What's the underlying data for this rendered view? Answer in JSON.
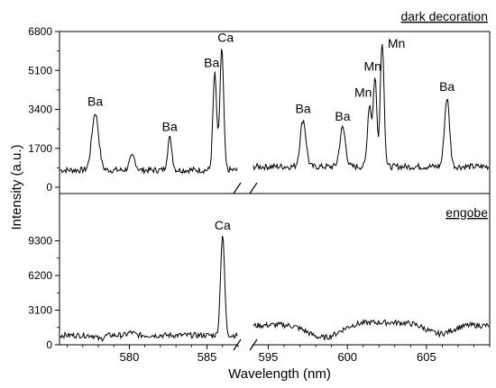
{
  "chart_data": {
    "type": "line",
    "xlabel": "Wavelength (nm)",
    "ylabel": "Intensity (a.u.)",
    "x_break": [
      587,
      594
    ],
    "x_segments": [
      [
        575.5,
        587
      ],
      [
        594,
        609
      ]
    ],
    "x_ticks": [
      {
        "value": 580,
        "label": "580"
      },
      {
        "value": 585,
        "label": "585"
      },
      {
        "value": 595,
        "label": "595"
      },
      {
        "value": 600,
        "label": "600"
      },
      {
        "value": 605,
        "label": "605"
      }
    ],
    "panels": [
      {
        "label": "dark decoration",
        "ylim": [
          0,
          6800
        ],
        "y_ticks": [
          {
            "value": 0,
            "label": "0"
          },
          {
            "value": 1700,
            "label": "1700"
          },
          {
            "value": 3400,
            "label": "3400"
          },
          {
            "value": 5100,
            "label": "5100"
          },
          {
            "value": 6800,
            "label": "6800"
          }
        ],
        "baseline_left": 750,
        "baseline_right": 900,
        "peaks": [
          {
            "x": 577.8,
            "y": 3250,
            "w": 0.22
          },
          {
            "x": 580.2,
            "y": 1350,
            "w": 0.18
          },
          {
            "x": 582.6,
            "y": 2150,
            "w": 0.14
          },
          {
            "x": 585.5,
            "y": 4950,
            "w": 0.12
          },
          {
            "x": 585.95,
            "y": 6050,
            "w": 0.12
          },
          {
            "x": 597.2,
            "y": 2950,
            "w": 0.18
          },
          {
            "x": 599.7,
            "y": 2600,
            "w": 0.18
          },
          {
            "x": 601.4,
            "y": 3600,
            "w": 0.13
          },
          {
            "x": 601.75,
            "y": 4800,
            "w": 0.11
          },
          {
            "x": 602.2,
            "y": 6400,
            "w": 0.12
          },
          {
            "x": 606.3,
            "y": 3900,
            "w": 0.16
          }
        ],
        "annotations": [
          {
            "text": "Ba",
            "x": 577.8,
            "y": 3550
          },
          {
            "text": "Ba",
            "x": 582.6,
            "y": 2450
          },
          {
            "text": "Ba",
            "x": 585.3,
            "y": 5250
          },
          {
            "text": "Ca",
            "x": 586.2,
            "y": 6350
          },
          {
            "text": "Ba",
            "x": 597.2,
            "y": 3250
          },
          {
            "text": "Ba",
            "x": 599.7,
            "y": 2900
          },
          {
            "text": "Mn",
            "x": 601.0,
            "y": 3950
          },
          {
            "text": "Mn",
            "x": 601.6,
            "y": 5100
          },
          {
            "text": "Mn",
            "x": 603.1,
            "y": 6100
          },
          {
            "text": "Ba",
            "x": 606.3,
            "y": 4200
          }
        ]
      },
      {
        "label": "engobe",
        "ylim": [
          0,
          12400
        ],
        "y_ticks": [
          {
            "value": 0,
            "label": "0"
          },
          {
            "value": 3100,
            "label": "3100"
          },
          {
            "value": 6200,
            "label": "6200"
          },
          {
            "value": 9300,
            "label": "9300"
          }
        ],
        "baseline_left": 850,
        "baseline_right": 1700,
        "peaks": [
          {
            "x": 578.1,
            "y": 500,
            "w": 0.2
          },
          {
            "x": 580.1,
            "y": 1100,
            "w": 0.2
          },
          {
            "x": 586.0,
            "y": 9800,
            "w": 0.13
          },
          {
            "x": 605.8,
            "y": 800,
            "w": 0.8
          },
          {
            "x": 598.5,
            "y": 400,
            "w": 1.0
          }
        ],
        "annotations": [
          {
            "text": "Ca",
            "x": 586.0,
            "y": 10300
          }
        ]
      }
    ]
  }
}
